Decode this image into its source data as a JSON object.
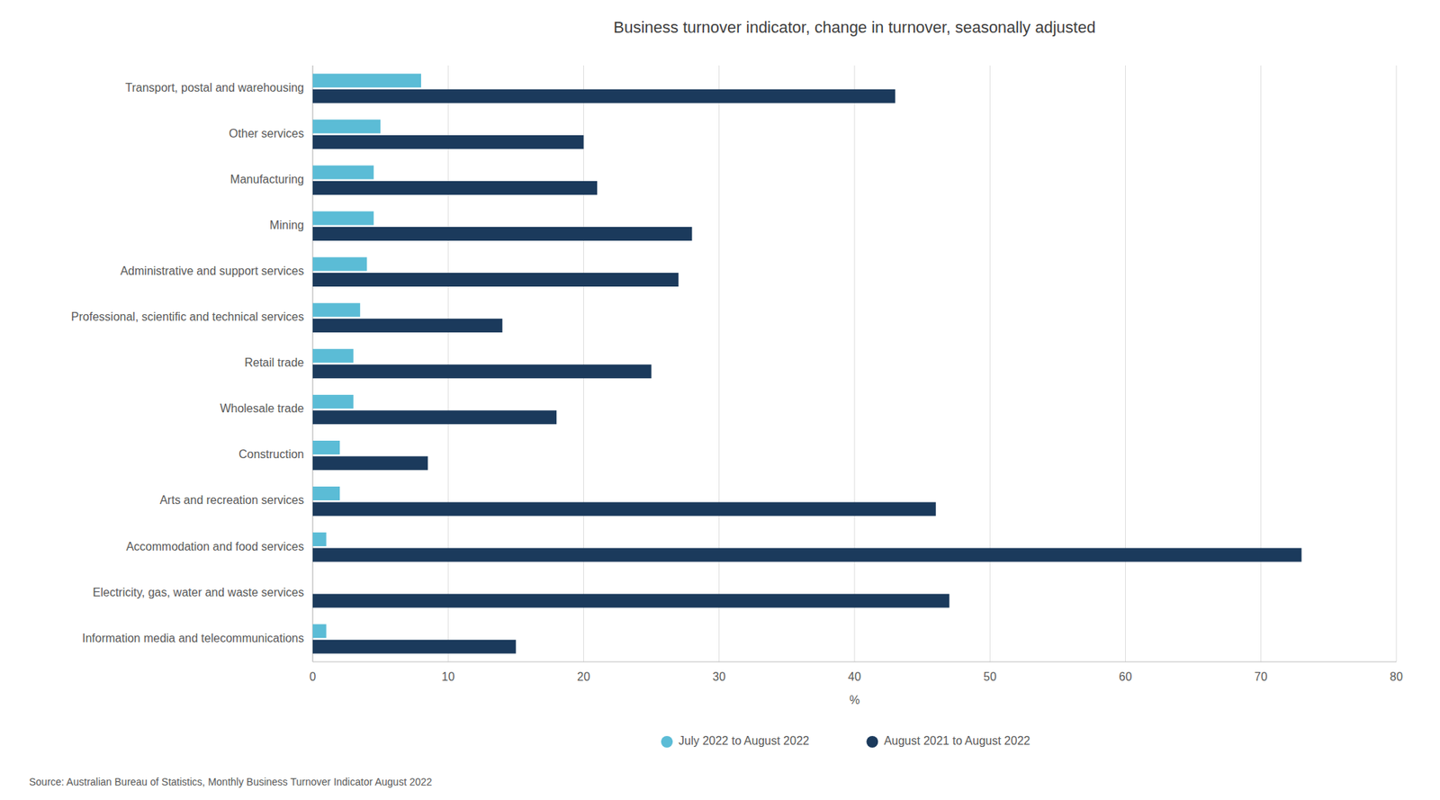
{
  "chart_data": {
    "type": "bar",
    "orientation": "horizontal",
    "title": "Business turnover indicator, change in turnover, seasonally adjusted",
    "source": "Source: Australian Bureau of Statistics, Monthly Business Turnover Indicator August 2022",
    "xlabel": "%",
    "categories": [
      "Information media and telecommunications",
      "Electricity, gas, water and waste services",
      "Accommodation and food services",
      "Arts and recreation services",
      "Construction",
      "Wholesale trade",
      "Retail trade",
      "Professional, scientific and technical services",
      "Administrative and support services",
      "Mining",
      "Manufacturing",
      "Other services",
      "Transport, postal and warehousing"
    ],
    "series": [
      {
        "name": "July 2022 to August 2022",
        "color": "#5bbcd6",
        "values": [
          1.0,
          0.0,
          1.0,
          2.0,
          2.0,
          3.0,
          3.0,
          3.5,
          4.0,
          4.5,
          4.5,
          5.0,
          8.0
        ]
      },
      {
        "name": "August 2021 to August 2022",
        "color": "#1b3a5c",
        "values": [
          15.0,
          47.0,
          73.0,
          46.0,
          8.5,
          18.0,
          25.0,
          14.0,
          27.0,
          28.0,
          21.0,
          20.0,
          43.0
        ]
      }
    ],
    "xlim": [
      0,
      80
    ],
    "xticks": [
      0,
      10,
      20,
      30,
      40,
      50,
      60,
      70,
      80
    ],
    "grid": true,
    "legend": "bottom"
  }
}
